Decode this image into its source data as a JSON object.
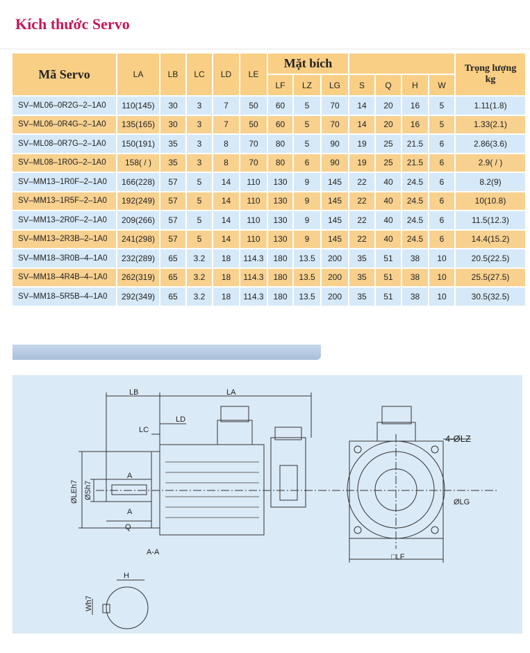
{
  "title": "Kích thước Servo",
  "table": {
    "headers": {
      "code": "Mã Servo",
      "LA": "LA",
      "LB": "LB",
      "LC": "LC",
      "LD": "LD",
      "LE": "LE",
      "flange": "Mặt bích",
      "LF": "LF",
      "LZ": "LZ",
      "LG": "LG",
      "S": "S",
      "Q": "Q",
      "H": "H",
      "W": "W",
      "weight": "Trọng lượng",
      "weight_unit": "kg"
    },
    "rows": [
      [
        "SV–ML06–0R2G–2–1A0",
        "110(145)",
        "30",
        "3",
        "7",
        "50",
        "60",
        "5",
        "70",
        "14",
        "20",
        "16",
        "5",
        "1.11(1.8)"
      ],
      [
        "SV–ML06–0R4G–2–1A0",
        "135(165)",
        "30",
        "3",
        "7",
        "50",
        "60",
        "5",
        "70",
        "14",
        "20",
        "16",
        "5",
        "1.33(2.1)"
      ],
      [
        "SV–ML08–0R7G–2–1A0",
        "150(191)",
        "35",
        "3",
        "8",
        "70",
        "80",
        "5",
        "90",
        "19",
        "25",
        "21.5",
        "6",
        "2.86(3.6)"
      ],
      [
        "SV–ML08–1R0G–2–1A0",
        "158( / )",
        "35",
        "3",
        "8",
        "70",
        "80",
        "6",
        "90",
        "19",
        "25",
        "21.5",
        "6",
        "2.9( / )"
      ],
      [
        "SV–MM13–1R0F–2–1A0",
        "166(228)",
        "57",
        "5",
        "14",
        "110",
        "130",
        "9",
        "145",
        "22",
        "40",
        "24.5",
        "6",
        "8.2(9)"
      ],
      [
        "SV–MM13–1R5F–2–1A0",
        "192(249)",
        "57",
        "5",
        "14",
        "110",
        "130",
        "9",
        "145",
        "22",
        "40",
        "24.5",
        "6",
        "10(10.8)"
      ],
      [
        "SV–MM13–2R0F–2–1A0",
        "209(266)",
        "57",
        "5",
        "14",
        "110",
        "130",
        "9",
        "145",
        "22",
        "40",
        "24.5",
        "6",
        "11.5(12.3)"
      ],
      [
        "SV–MM13–2R3B–2–1A0",
        "241(298)",
        "57",
        "5",
        "14",
        "110",
        "130",
        "9",
        "145",
        "22",
        "40",
        "24.5",
        "6",
        "14.4(15.2)"
      ],
      [
        "SV–MM18–3R0B–4–1A0",
        "232(289)",
        "65",
        "3.2",
        "18",
        "114.3",
        "180",
        "13.5",
        "200",
        "35",
        "51",
        "38",
        "10",
        "20.5(22.5)"
      ],
      [
        "SV–MM18–4R4B–4–1A0",
        "262(319)",
        "65",
        "3.2",
        "18",
        "114.3",
        "180",
        "13.5",
        "200",
        "35",
        "51",
        "38",
        "10",
        "25.5(27.5)"
      ],
      [
        "SV–MM18–5R5B–4–1A0",
        "292(349)",
        "65",
        "3.2",
        "18",
        "114.3",
        "180",
        "13.5",
        "200",
        "35",
        "51",
        "38",
        "10",
        "30.5(32.5)"
      ]
    ]
  },
  "drawing": {
    "LB": "LB",
    "LA": "LA",
    "LC": "LC",
    "LD": "LD",
    "LE": "ØLEh7",
    "S": "ØSh7",
    "A1": "A",
    "A2": "A",
    "Q": "Q",
    "AA": "A-A",
    "LZ": "4-ØLZ",
    "LG": "ØLG",
    "LF": "□LF",
    "H": "H",
    "W": "Wh7"
  }
}
